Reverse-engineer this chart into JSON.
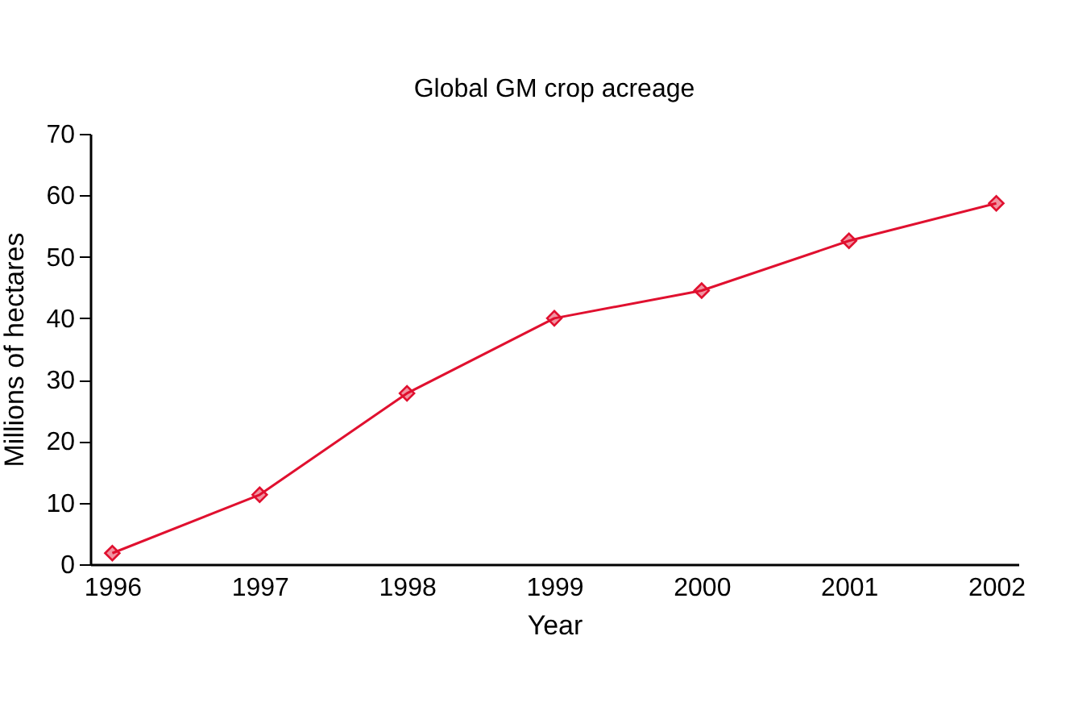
{
  "chart_data": {
    "type": "line",
    "title": "Global GM crop acreage",
    "xlabel": "Year",
    "ylabel": "Millions of hectares",
    "categories": [
      "1996",
      "1997",
      "1998",
      "1999",
      "2000",
      "2001",
      "2002"
    ],
    "series": [
      {
        "color": "#e0102f",
        "values": [
          1.8,
          11.3,
          27.8,
          40,
          44.5,
          52.6,
          58.7
        ]
      }
    ],
    "ylim": [
      0,
      70
    ],
    "yticks": [
      0,
      10,
      20,
      30,
      40,
      50,
      60,
      70
    ],
    "grid": false,
    "marker": "diamond",
    "line_style": "solid"
  }
}
